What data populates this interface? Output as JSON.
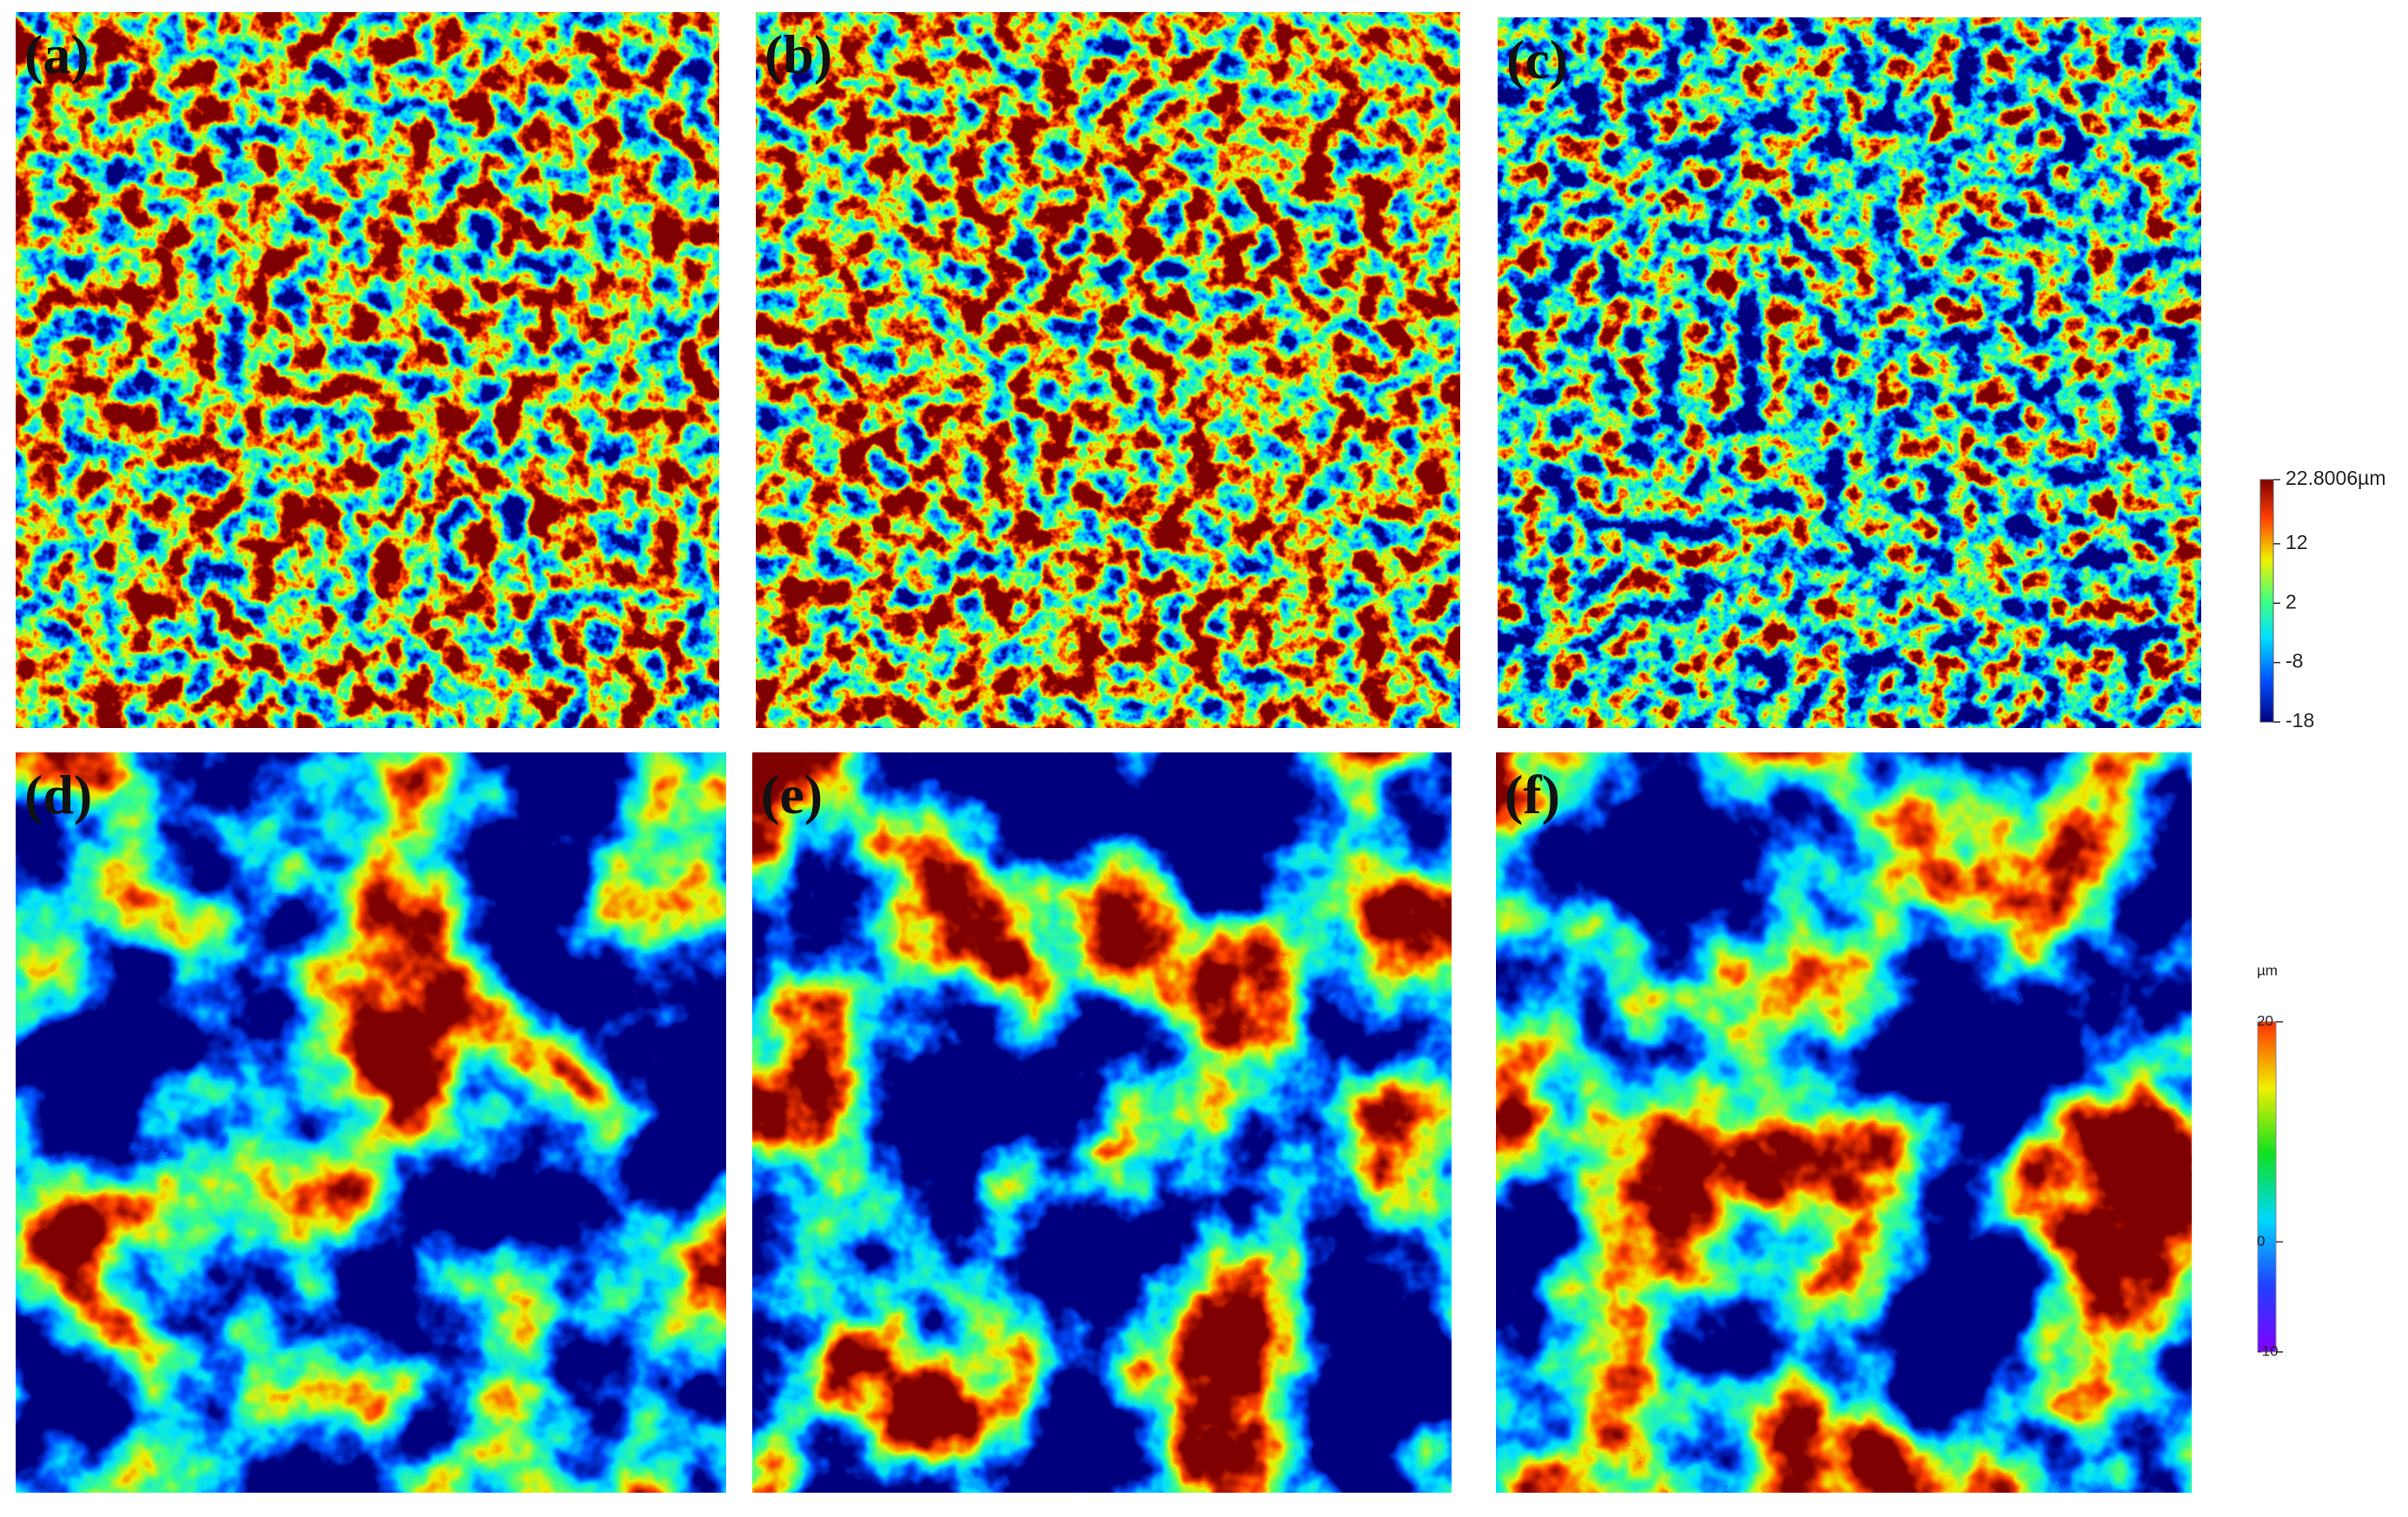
{
  "panels": [
    {
      "label": "(a)"
    },
    {
      "label": "(b)"
    },
    {
      "label": "(c)"
    },
    {
      "label": "(d)"
    },
    {
      "label": "(e)"
    },
    {
      "label": "(f)"
    }
  ],
  "colorbar_top": {
    "ylim": [
      -18,
      22.8006
    ],
    "yticks": [
      {
        "value": 22.8006,
        "label": "22.8006µm"
      },
      12,
      2,
      -8,
      -18
    ]
  },
  "colorbar_bottom": {
    "unit": "µm",
    "ylim": [
      -10,
      20
    ],
    "yticks": [
      20,
      0,
      -10
    ]
  }
}
